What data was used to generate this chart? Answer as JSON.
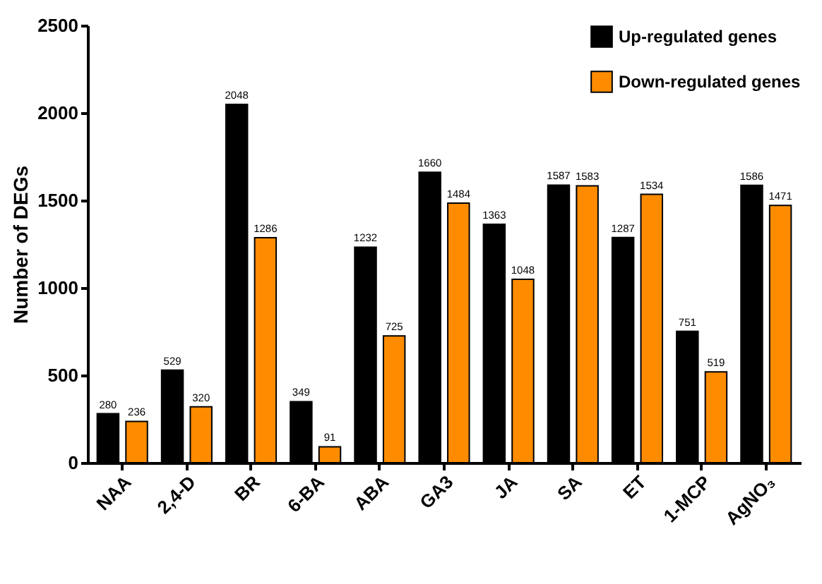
{
  "chart_data": {
    "type": "bar",
    "ylabel": "Number of DEGs",
    "categories": [
      "NAA",
      "2,4-D",
      "BR",
      "6-BA",
      "ABA",
      "GA3",
      "JA",
      "SA",
      "ET",
      "1-MCP",
      "AgNO₃"
    ],
    "series": [
      {
        "name": "Up-regulated genes",
        "color": "#000000",
        "values": [
          280,
          529,
          2048,
          349,
          1232,
          1660,
          1363,
          1587,
          1287,
          751,
          1586
        ]
      },
      {
        "name": "Down-regulated genes",
        "color": "#ff8c00",
        "values": [
          236,
          320,
          1286,
          91,
          725,
          1484,
          1048,
          1583,
          1534,
          519,
          1471
        ]
      }
    ],
    "ylim": [
      0,
      2500
    ],
    "yticks": [
      0,
      500,
      1000,
      1500,
      2000,
      2500
    ],
    "data_labels": true,
    "legend": "top right",
    "grid": false
  }
}
